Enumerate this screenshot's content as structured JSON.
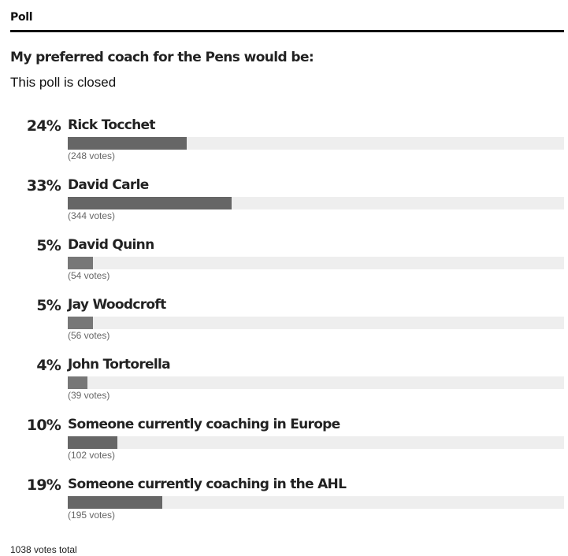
{
  "poll": {
    "header": "Poll",
    "question": "My preferred coach for the Pens would be:",
    "status": "This poll is closed",
    "options": [
      {
        "percent_label": "24%",
        "name": "Rick Tocchet",
        "votes_label": "(248 votes)",
        "percent": 24
      },
      {
        "percent_label": "33%",
        "name": "David Carle",
        "votes_label": "(344 votes)",
        "percent": 33
      },
      {
        "percent_label": "5%",
        "name": "David Quinn",
        "votes_label": "(54 votes)",
        "percent": 5
      },
      {
        "percent_label": "5%",
        "name": "Jay Woodcroft",
        "votes_label": "(56 votes)",
        "percent": 5
      },
      {
        "percent_label": "4%",
        "name": "John Tortorella",
        "votes_label": "(39 votes)",
        "percent": 4
      },
      {
        "percent_label": "10%",
        "name": "Someone currently coaching in Europe",
        "votes_label": "(102 votes)",
        "percent": 10
      },
      {
        "percent_label": "19%",
        "name": "Someone currently coaching in the AHL",
        "votes_label": "(195 votes)",
        "percent": 19
      }
    ],
    "total": "1038 votes total",
    "colors": {
      "bar_fill": "#666666",
      "bar_track": "#eeeeee",
      "rule": "#111111"
    }
  }
}
